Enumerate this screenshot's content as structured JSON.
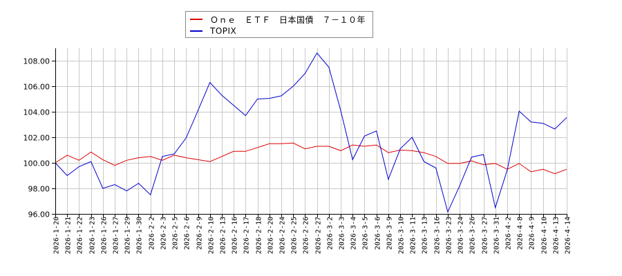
{
  "chart_data": {
    "type": "line",
    "title": "",
    "xlabel": "",
    "ylabel": "",
    "ylim": [
      96,
      109
    ],
    "yticks": [
      96.0,
      98.0,
      100.0,
      102.0,
      104.0,
      106.0,
      108.0
    ],
    "ytick_labels": [
      "96.00",
      "98.00",
      "100.00",
      "102.00",
      "104.00",
      "106.00",
      "108.00"
    ],
    "grid": true,
    "legend_position": "top",
    "x": [
      "2026-1-20",
      "2026-1-21",
      "2026-1-22",
      "2026-1-23",
      "2026-1-26",
      "2026-1-27",
      "2026-1-29",
      "2026-1-30",
      "2026-2-2",
      "2026-2-3",
      "2026-2-5",
      "2026-2-6",
      "2026-2-9",
      "2026-2-10",
      "2026-2-13",
      "2026-2-16",
      "2026-2-17",
      "2026-2-18",
      "2026-2-20",
      "2026-2-24",
      "2026-2-25",
      "2026-2-26",
      "2026-2-27",
      "2026-3-2",
      "2026-3-3",
      "2026-3-4",
      "2026-3-5",
      "2026-3-6",
      "2026-3-9",
      "2026-3-10",
      "2026-3-11",
      "2026-3-13",
      "2026-3-16",
      "2026-3-23",
      "2026-3-24",
      "2026-3-26",
      "2026-3-27",
      "2026-3-31",
      "2026-4-2",
      "2026-4-8",
      "2026-4-9",
      "2026-4-10",
      "2026-4-13",
      "2026-4-14"
    ],
    "series": [
      {
        "name": "Ｏｎｅ　ＥＴＦ　日本国債　７－１０年",
        "color": "#dd0000",
        "values": [
          100.0,
          100.6,
          100.2,
          100.85,
          100.25,
          99.8,
          100.2,
          100.4,
          100.5,
          100.2,
          100.6,
          100.4,
          100.25,
          100.1,
          100.5,
          100.9,
          100.9,
          101.2,
          101.5,
          101.5,
          101.55,
          101.1,
          101.3,
          101.3,
          100.95,
          101.4,
          101.3,
          101.4,
          100.8,
          101.0,
          100.95,
          100.8,
          100.5,
          99.95,
          99.95,
          100.15,
          99.85,
          99.95,
          99.5,
          99.95,
          99.3,
          99.5,
          99.15,
          99.5
        ]
      },
      {
        "name": "TOPIX",
        "color": "#0000cc",
        "values": [
          100.0,
          99.0,
          99.7,
          100.1,
          98.0,
          98.3,
          97.8,
          98.4,
          97.5,
          100.5,
          100.7,
          101.95,
          104.1,
          106.3,
          105.3,
          104.5,
          103.7,
          105.0,
          105.05,
          105.25,
          106.0,
          107.0,
          108.6,
          107.5,
          104.1,
          100.25,
          102.1,
          102.5,
          98.7,
          101.1,
          102.0,
          100.1,
          99.6,
          96.15,
          98.2,
          100.45,
          100.65,
          96.5,
          99.45,
          104.05,
          103.2,
          103.1,
          102.65,
          103.55
        ]
      }
    ]
  },
  "legend": {
    "items": [
      {
        "label": "Ｏｎｅ　ＥＴＦ　日本国債　７－１０年",
        "color": "#dd0000"
      },
      {
        "label": "TOPIX",
        "color": "#0000cc"
      }
    ]
  }
}
